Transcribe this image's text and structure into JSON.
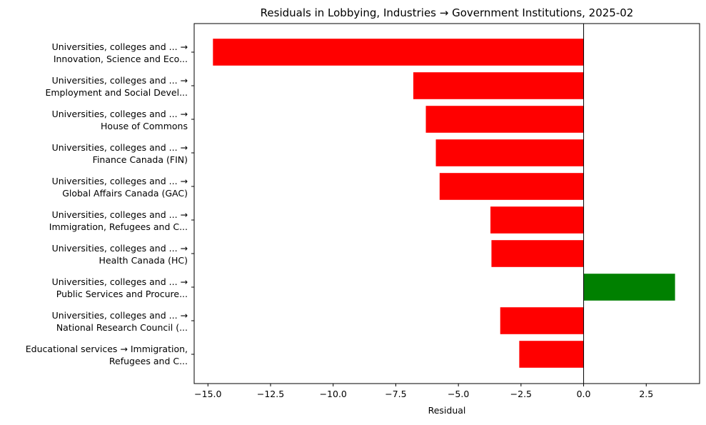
{
  "chart_data": {
    "type": "bar",
    "orientation": "horizontal",
    "title": "Residuals in Lobbying, Industries → Government Institutions, 2025-02",
    "xlabel": "Residual",
    "ylabel": "",
    "xlim": [
      -15.55,
      4.63
    ],
    "xticks": [
      -15.0,
      -12.5,
      -10.0,
      -7.5,
      -5.0,
      -2.5,
      0.0,
      2.5
    ],
    "xtick_labels": [
      "−15.0",
      "−12.5",
      "−10.0",
      "−7.5",
      "−5.0",
      "−2.5",
      "0.0",
      "2.5"
    ],
    "grid": false,
    "zero_line": true,
    "colors": {
      "negative": "#ff0000",
      "positive": "#008000",
      "zero_line": "#000000"
    },
    "categories": [
      [
        "Universities, colleges and ... →",
        "Innovation, Science and Eco..."
      ],
      [
        "Universities, colleges and ... →",
        "Employment and Social Devel..."
      ],
      [
        "Universities, colleges and ... →",
        "House of Commons"
      ],
      [
        "Universities, colleges and ... →",
        "Finance Canada (FIN)"
      ],
      [
        "Universities, colleges and ... →",
        "Global Affairs Canada (GAC)"
      ],
      [
        "Universities, colleges and ... →",
        "Immigration, Refugees and C..."
      ],
      [
        "Universities, colleges and ... →",
        "Health Canada (HC)"
      ],
      [
        "Universities, colleges and ... →",
        "Public Services and Procure..."
      ],
      [
        "Universities, colleges and ... →",
        "National Research Council (..."
      ],
      [
        "Educational services → Immigration,",
        "Refugees and C..."
      ]
    ],
    "values": [
      -14.8,
      -6.8,
      -6.3,
      -5.9,
      -5.75,
      -3.72,
      -3.68,
      3.65,
      -3.33,
      -2.57
    ]
  }
}
